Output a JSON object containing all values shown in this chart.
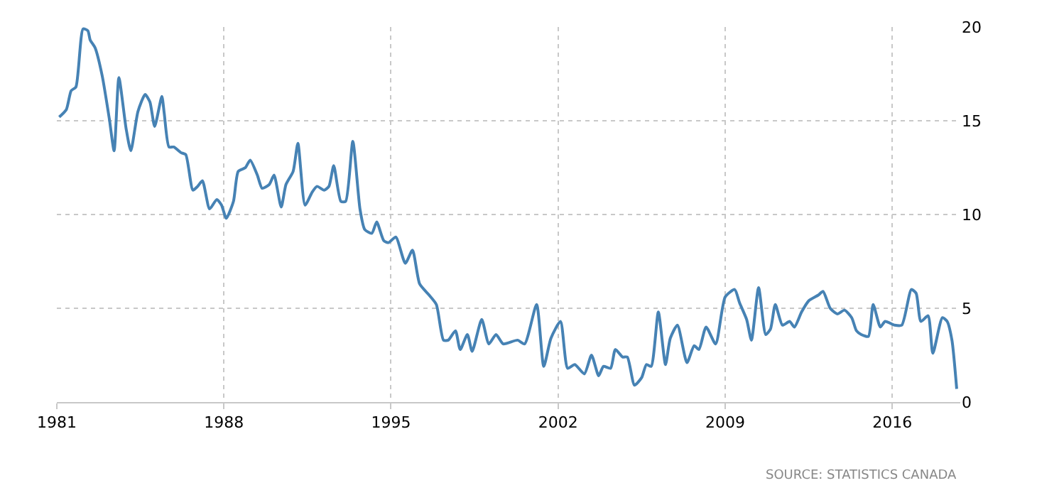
{
  "chart_data": {
    "type": "line",
    "x": [
      1981.1,
      1981.4,
      1981.6,
      1981.8,
      1982.1,
      1982.3,
      1982.4,
      1982.6,
      1982.9,
      1983.2,
      1983.4,
      1983.6,
      1983.9,
      1984.1,
      1984.4,
      1984.7,
      1984.9,
      1985.1,
      1985.4,
      1985.5,
      1985.7,
      1985.9,
      1986.2,
      1986.4,
      1986.7,
      1986.9,
      1987.1,
      1987.4,
      1987.7,
      1987.9,
      1988.1,
      1988.4,
      1988.6,
      1988.9,
      1989.1,
      1989.4,
      1989.6,
      1989.9,
      1990.1,
      1990.4,
      1990.6,
      1990.9,
      1991.1,
      1991.4,
      1991.7,
      1991.9,
      1992.2,
      1992.4,
      1992.6,
      1992.9,
      1993.1,
      1993.4,
      1993.7,
      1993.9,
      1994.2,
      1994.4,
      1994.7,
      1994.9,
      1995.2,
      1995.6,
      1995.9,
      1996.2,
      1996.6,
      1996.9,
      1997.2,
      1997.4,
      1997.7,
      1997.9,
      1998.2,
      1998.4,
      1998.8,
      1999.1,
      1999.4,
      1999.7,
      2000.3,
      2000.6,
      2001.1,
      2001.4,
      2001.7,
      2002.1,
      2002.4,
      2002.7,
      2003.1,
      2003.4,
      2003.7,
      2003.9,
      2004.2,
      2004.4,
      2004.7,
      2004.9,
      2005.2,
      2005.5,
      2005.7,
      2005.9,
      2006.2,
      2006.5,
      2006.7,
      2007.0,
      2007.4,
      2007.7,
      2007.9,
      2008.2,
      2008.6,
      2009.0,
      2009.4,
      2009.6,
      2009.9,
      2010.1,
      2010.4,
      2010.7,
      2010.9,
      2011.1,
      2011.4,
      2011.7,
      2011.9,
      2012.2,
      2012.5,
      2012.9,
      2013.1,
      2013.4,
      2013.7,
      2014.0,
      2014.3,
      2014.5,
      2014.7,
      2015.0,
      2015.2,
      2015.5,
      2015.7,
      2016.1,
      2016.4,
      2016.8,
      2017.0,
      2017.2,
      2017.5,
      2017.7,
      2018.1,
      2018.3,
      2018.5,
      2018.7
    ],
    "series": [
      {
        "color": "#4682b4",
        "values": [
          15.2,
          15.6,
          16.6,
          16.8,
          19.9,
          19.8,
          19.3,
          18.9,
          17.4,
          15.1,
          13.4,
          17.3,
          14.6,
          13.4,
          15.5,
          16.4,
          16.0,
          14.7,
          16.3,
          15.4,
          13.6,
          13.6,
          13.3,
          13.2,
          11.3,
          11.5,
          11.8,
          10.3,
          10.8,
          10.5,
          9.8,
          10.7,
          12.3,
          12.5,
          12.9,
          12.1,
          11.4,
          11.6,
          12.1,
          10.4,
          11.6,
          12.3,
          13.8,
          10.5,
          11.2,
          11.5,
          11.3,
          11.5,
          12.6,
          10.7,
          10.7,
          13.9,
          10.3,
          9.2,
          9.0,
          9.6,
          8.6,
          8.5,
          8.8,
          7.4,
          8.1,
          6.3,
          5.7,
          5.2,
          3.3,
          3.3,
          3.8,
          2.8,
          3.6,
          2.7,
          4.4,
          3.1,
          3.6,
          3.1,
          3.3,
          3.1,
          5.2,
          1.9,
          3.4,
          4.3,
          1.8,
          2.0,
          1.5,
          2.5,
          1.4,
          1.9,
          1.8,
          2.8,
          2.4,
          2.4,
          0.9,
          1.3,
          2.0,
          1.9,
          4.8,
          2.0,
          3.4,
          4.1,
          2.1,
          3.0,
          2.8,
          4.0,
          3.1,
          5.6,
          6.0,
          5.3,
          4.4,
          3.3,
          6.1,
          3.6,
          3.9,
          5.2,
          4.1,
          4.3,
          4.0,
          4.8,
          5.4,
          5.7,
          5.9,
          5.0,
          4.7,
          4.9,
          4.5,
          3.8,
          3.6,
          3.5,
          5.2,
          4.0,
          4.3,
          4.1,
          4.1,
          6.0,
          5.8,
          4.3,
          4.6,
          2.6,
          4.5,
          4.3,
          3.3,
          0.7
        ]
      }
    ],
    "xlim": [
      1981,
      2018.85
    ],
    "xticks": [
      1981,
      1988,
      1995,
      2002,
      2009,
      2016
    ],
    "ylim": [
      0,
      20
    ],
    "yticks": [
      0,
      5,
      10,
      15,
      20
    ],
    "grid": true,
    "line_style": "solid",
    "annotations": [
      "SOURCE: STATISTICS CANADA"
    ]
  }
}
